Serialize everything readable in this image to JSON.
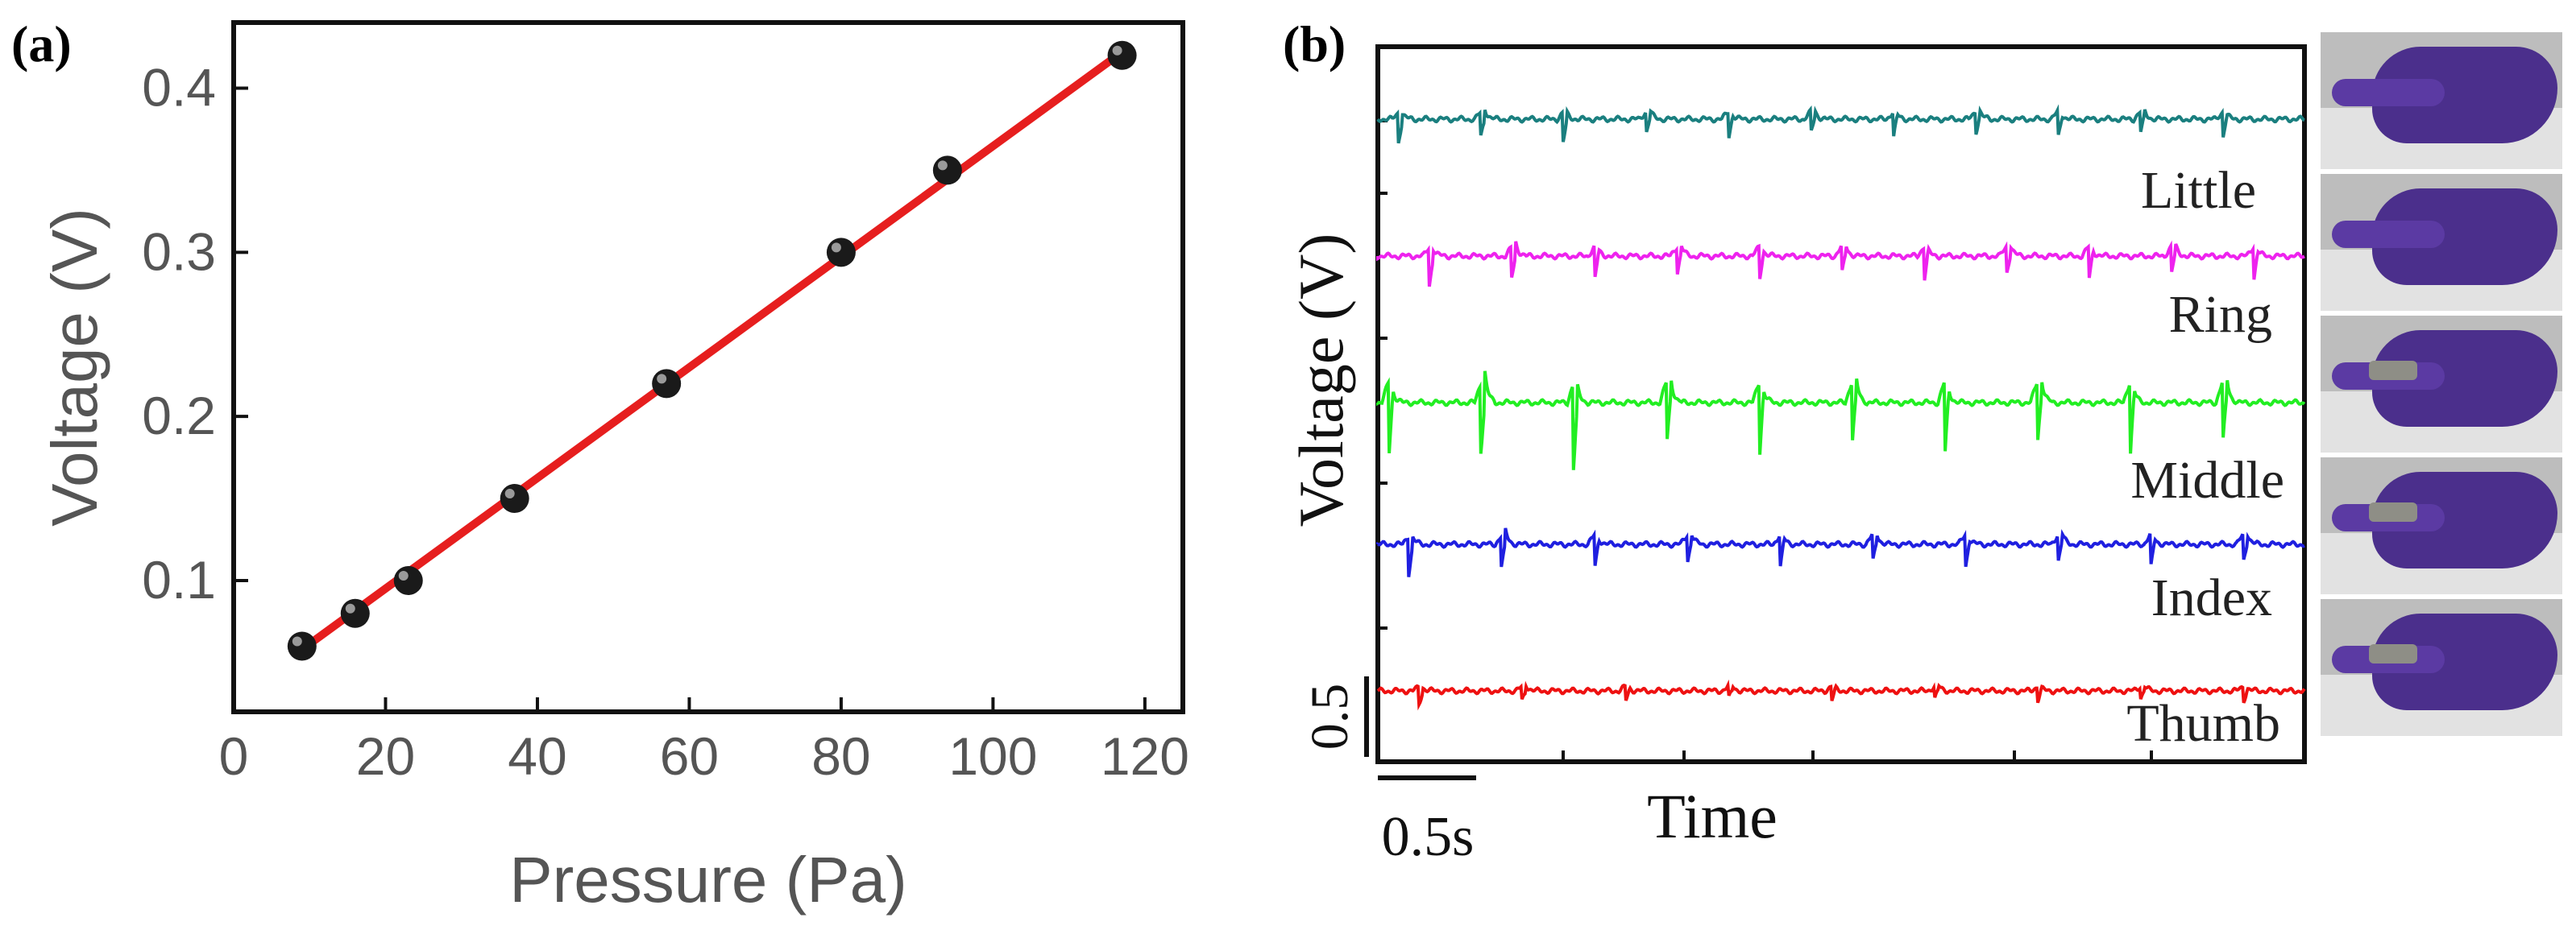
{
  "panel_a_label": "(a)",
  "panel_b_label": "(b)",
  "chart_data": [
    {
      "type": "scatter",
      "id": "a",
      "title": "",
      "xlabel": "Pressure (Pa)",
      "ylabel": "Voltage (V)",
      "xlim": [
        0,
        125
      ],
      "ylim": [
        0.02,
        0.44
      ],
      "xticks": [
        0,
        20,
        40,
        60,
        80,
        100,
        120
      ],
      "yticks": [
        0.1,
        0.2,
        0.3,
        0.4
      ],
      "x": [
        9,
        16,
        23,
        37,
        57,
        80,
        94,
        117
      ],
      "y": [
        0.06,
        0.08,
        0.1,
        0.15,
        0.22,
        0.3,
        0.35,
        0.42
      ],
      "fit_line": {
        "x": [
          9,
          117
        ],
        "y": [
          0.058,
          0.422
        ],
        "color": "#e61e1e"
      },
      "marker_color": "#1a1a1a"
    },
    {
      "type": "line",
      "id": "b",
      "xlabel": "Time",
      "ylabel": "Voltage (V)",
      "scale_bar_x": "0.5s",
      "scale_bar_y": "0.5",
      "series": [
        {
          "name": "Little",
          "color": "#1a7f7f",
          "spike_times": [
            0.2,
            1.0,
            1.8,
            2.6,
            3.4,
            4.2,
            5.0,
            5.8,
            6.6,
            7.4,
            8.2
          ],
          "amplitude": 0.35
        },
        {
          "name": "Ring",
          "color": "#ee22ee",
          "spike_times": [
            0.5,
            1.3,
            2.1,
            2.9,
            3.7,
            4.5,
            5.3,
            6.1,
            6.9,
            7.7,
            8.5
          ],
          "amplitude": 0.45
        },
        {
          "name": "Middle",
          "color": "#22ee22",
          "spike_times": [
            0.1,
            1.0,
            1.9,
            2.8,
            3.7,
            4.6,
            5.5,
            6.4,
            7.3,
            8.2
          ],
          "amplitude": 1.0
        },
        {
          "name": "Index",
          "color": "#1f1fe0",
          "spike_times": [
            0.3,
            1.2,
            2.1,
            3.0,
            3.9,
            4.8,
            5.7,
            6.6,
            7.5,
            8.4
          ],
          "amplitude": 0.45
        },
        {
          "name": "Thumb",
          "color": "#ee1111",
          "spike_times": [
            0.4,
            1.4,
            2.4,
            3.4,
            4.4,
            5.4,
            6.4,
            7.4,
            8.4
          ],
          "amplitude": 0.2
        }
      ]
    }
  ],
  "photos": {
    "items": [
      "little-finger-bend",
      "ring-finger-bend",
      "middle-finger-bend",
      "index-finger-bend",
      "thumb-bend"
    ]
  }
}
